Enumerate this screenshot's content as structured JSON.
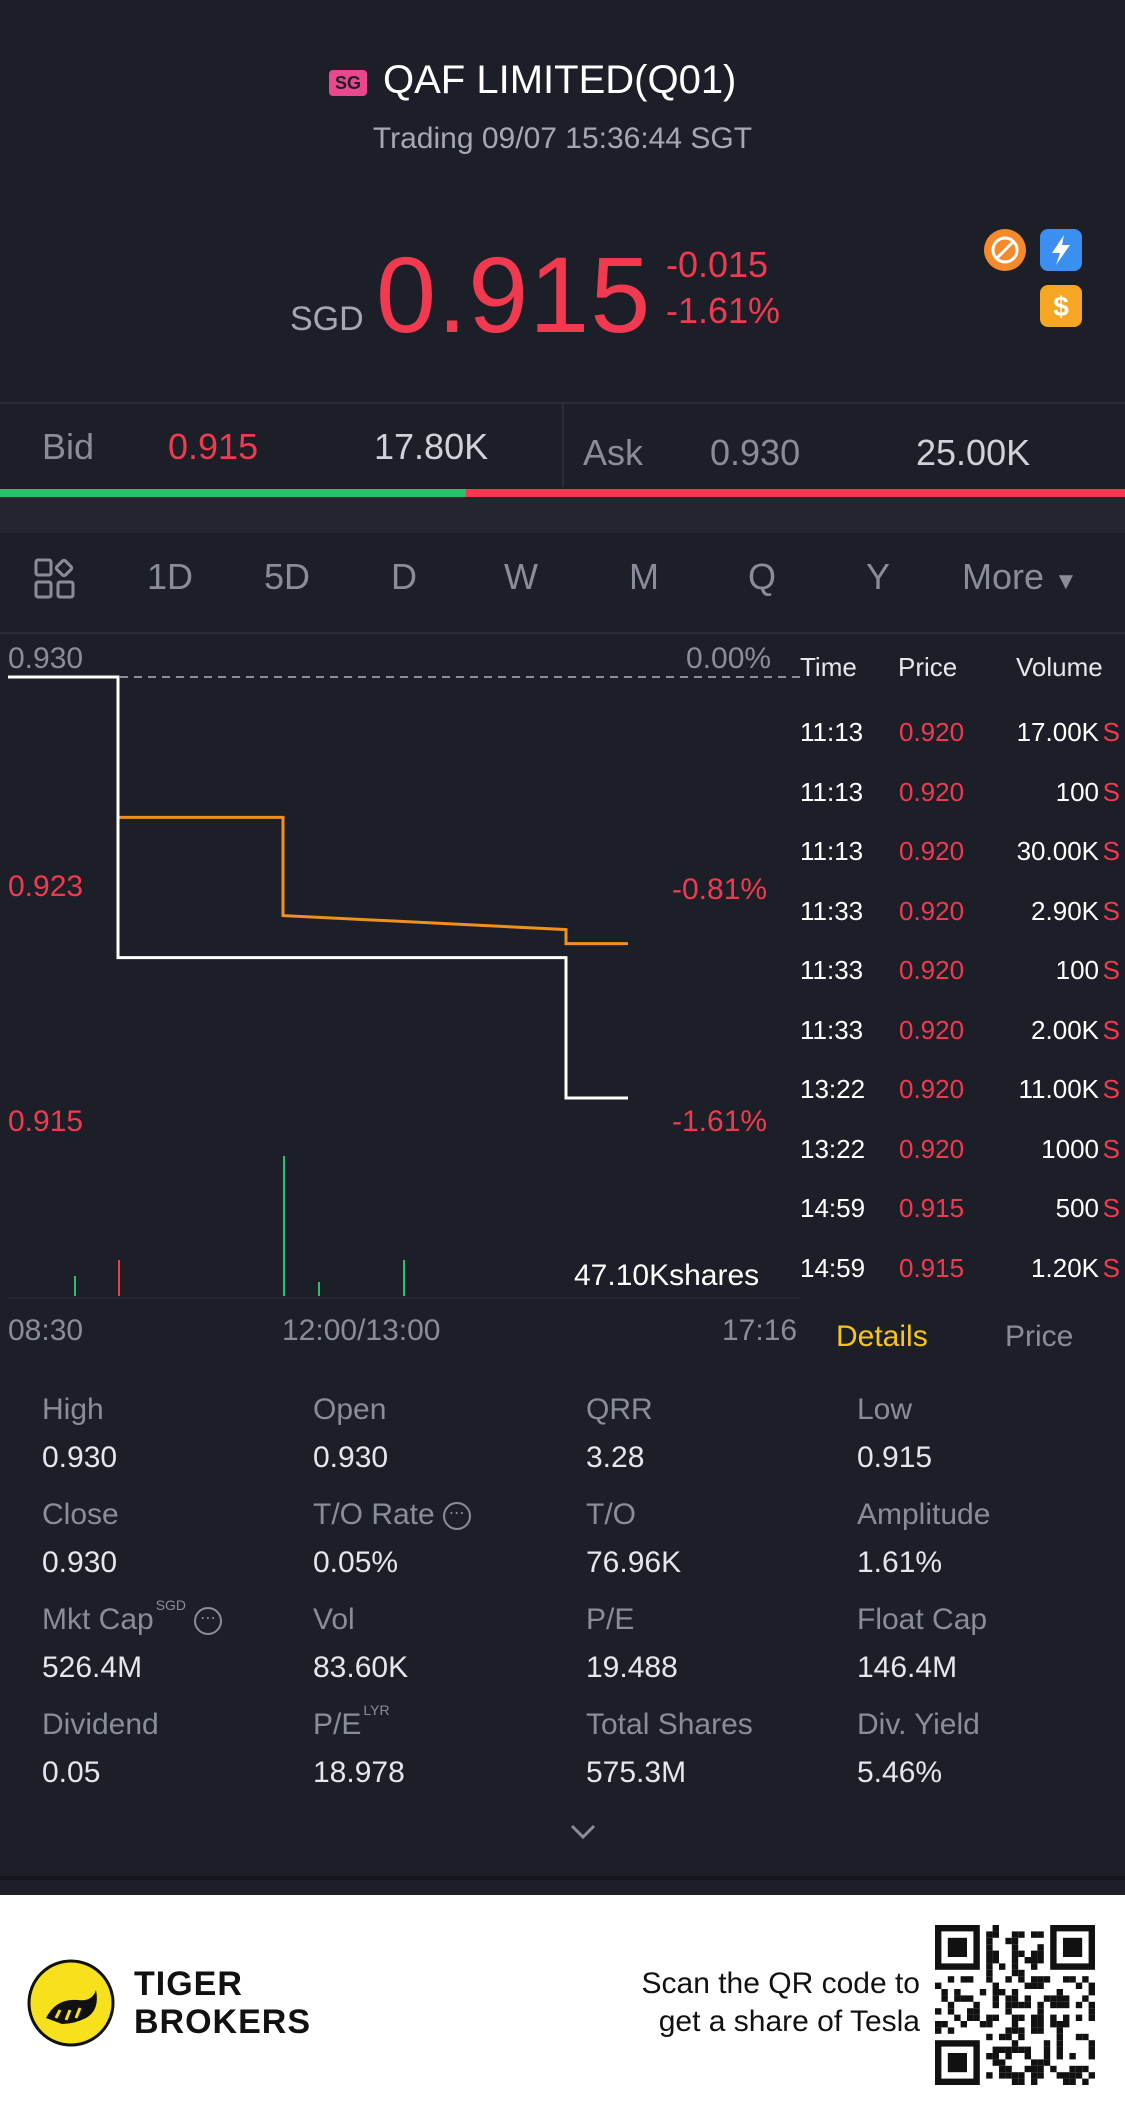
{
  "header": {
    "market_badge": "SG",
    "title": "QAF LIMITED(Q01)",
    "status": "Trading 09/07 15:36:44 SGT",
    "currency": "SGD",
    "price": "0.915",
    "change": "-0.015",
    "change_pct": "-1.61%"
  },
  "quote": {
    "bid_label": "Bid",
    "bid_price": "0.915",
    "bid_size": "17.80K",
    "ask_label": "Ask",
    "ask_price": "0.930",
    "ask_size": "25.00K"
  },
  "tabs": [
    "1D",
    "5D",
    "D",
    "W",
    "M",
    "Q",
    "Y"
  ],
  "tabs_more": "More",
  "tabs_active": "1D",
  "chart": {
    "y_top": "0.930",
    "y_mid": "0.923",
    "y_bot": "0.915",
    "pct_top": "0.00%",
    "pct_mid": "-0.81%",
    "pct_bot": "-1.61%",
    "volume_label": "47.10Kshares",
    "x_start": "08:30",
    "x_mid": "12:00/13:00",
    "x_end": "17:16",
    "colors": {
      "price": "#ffffff",
      "avg": "#f0901f",
      "up": "#2bbf6e",
      "down": "#f13a50"
    }
  },
  "chart_data": {
    "type": "line",
    "title": "QAF LIMITED(Q01) 1D",
    "x": [
      "08:30",
      "09:00",
      "09:00",
      "11:13",
      "11:13",
      "14:59",
      "14:59",
      "15:36"
    ],
    "series": [
      {
        "name": "Price",
        "values": [
          0.93,
          0.93,
          0.92,
          0.92,
          0.92,
          0.92,
          0.915,
          0.915
        ]
      },
      {
        "name": "Average",
        "values": [
          null,
          null,
          0.925,
          0.925,
          0.9215,
          0.921,
          0.9205,
          0.9205
        ]
      }
    ],
    "ylim": [
      0.915,
      0.93
    ],
    "xlabel": "",
    "ylabel": ""
  },
  "trades": {
    "headers": {
      "time": "Time",
      "price": "Price",
      "volume": "Volume"
    },
    "rows": [
      {
        "time": "11:13",
        "price": "0.920",
        "volume": "17.00K",
        "side": "S"
      },
      {
        "time": "11:13",
        "price": "0.920",
        "volume": "100",
        "side": "S"
      },
      {
        "time": "11:13",
        "price": "0.920",
        "volume": "30.00K",
        "side": "S"
      },
      {
        "time": "11:33",
        "price": "0.920",
        "volume": "2.90K",
        "side": "S"
      },
      {
        "time": "11:33",
        "price": "0.920",
        "volume": "100",
        "side": "S"
      },
      {
        "time": "11:33",
        "price": "0.920",
        "volume": "2.00K",
        "side": "S"
      },
      {
        "time": "13:22",
        "price": "0.920",
        "volume": "11.00K",
        "side": "S"
      },
      {
        "time": "13:22",
        "price": "0.920",
        "volume": "1000",
        "side": "S"
      },
      {
        "time": "14:59",
        "price": "0.915",
        "volume": "500",
        "side": "S"
      },
      {
        "time": "14:59",
        "price": "0.915",
        "volume": "1.20K",
        "side": "S"
      }
    ],
    "tab_details": "Details",
    "tab_price": "Price"
  },
  "stats": [
    {
      "label": "High",
      "value": "0.930"
    },
    {
      "label": "Open",
      "value": "0.930"
    },
    {
      "label": "QRR",
      "value": "3.28"
    },
    {
      "label": "Low",
      "value": "0.915"
    },
    {
      "label": "Close",
      "value": "0.930"
    },
    {
      "label": "T/O Rate",
      "value": "0.05%"
    },
    {
      "label": "T/O",
      "value": "76.96K"
    },
    {
      "label": "Amplitude",
      "value": "1.61%"
    },
    {
      "label": "Mkt Cap",
      "value": "526.4M",
      "sup": "SGD"
    },
    {
      "label": "Vol",
      "value": "83.60K"
    },
    {
      "label": "P/E",
      "value": "19.488"
    },
    {
      "label": "Float Cap",
      "value": "146.4M"
    },
    {
      "label": "Dividend",
      "value": "0.05"
    },
    {
      "label": "P/E",
      "value": "18.978",
      "sup": "LYR"
    },
    {
      "label": "Total Shares",
      "value": "575.3M"
    },
    {
      "label": "Div. Yield",
      "value": "5.46%"
    }
  ],
  "footer": {
    "brand_line1": "TIGER",
    "brand_line2": "BROKERS",
    "scan_line1": "Scan the QR code to",
    "scan_line2": "get a share of Tesla"
  }
}
